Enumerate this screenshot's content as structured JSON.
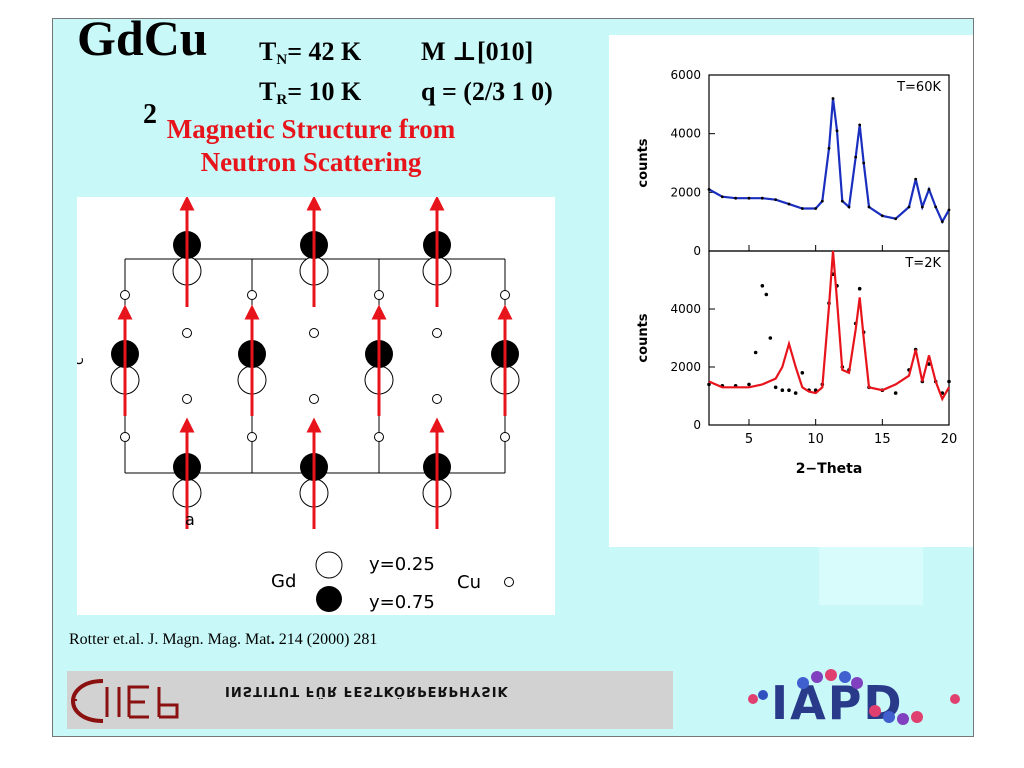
{
  "title": {
    "formula": "GdCu",
    "subscript": "2"
  },
  "params": {
    "tn_label": "T",
    "tn_sub": "N",
    "tn_value": "= 42 K",
    "moment": "M ⊥[010]",
    "tr_label": "T",
    "tr_sub": "R",
    "tr_value": "= 10 K",
    "q_vector": "q = (2/3 1 0)"
  },
  "heading": {
    "line1": "Magnetic Structure from",
    "line2": "Neutron Scattering"
  },
  "structure": {
    "axis_c": "c",
    "axis_a": "a",
    "legend_gd": "Gd",
    "legend_cu": "Cu",
    "legend_y_open": "y=0.25",
    "legend_y_filled": "y=0.75",
    "arrow_color": "#e8141c"
  },
  "citation": {
    "text": "Rotter et.al. J. Magn. Mag. Mat",
    "bold": ".",
    "rest": " 214 (2000) 281"
  },
  "footer": {
    "institute": "INSTITUT FÜR FESTKÖRPERPHYSIK",
    "logo_left": "IFP",
    "logo_right": "IAPD"
  },
  "colors": {
    "background": "#c8f8f8",
    "fit_60K": "#1a2fbf",
    "fit_2K": "#e8141c",
    "data": "#000000"
  },
  "chart_data": [
    {
      "type": "line",
      "annotation": "T=60K",
      "xlabel": "",
      "ylabel": "counts",
      "xlim": [
        2,
        20
      ],
      "ylim": [
        0,
        6000
      ],
      "yticks": [
        0,
        2000,
        4000,
        6000
      ],
      "series": [
        {
          "x": [
            2,
            3,
            4,
            5,
            6,
            7,
            8,
            9,
            10,
            10.5,
            11,
            11.3,
            11.6,
            12,
            12.5,
            13,
            13.3,
            13.6,
            14,
            15,
            16,
            17,
            17.5,
            18,
            18.5,
            19,
            19.5,
            20
          ],
          "values": [
            2100,
            1850,
            1800,
            1800,
            1800,
            1750,
            1600,
            1450,
            1450,
            1700,
            3500,
            5200,
            4100,
            1700,
            1500,
            3200,
            4300,
            3000,
            1500,
            1200,
            1100,
            1500,
            2450,
            1500,
            2100,
            1500,
            1000,
            1400
          ]
        }
      ]
    },
    {
      "type": "line",
      "annotation": "T=2K",
      "xlabel": "2−Theta",
      "ylabel": "counts",
      "xlim": [
        2,
        20
      ],
      "ylim": [
        0,
        6000
      ],
      "xticks": [
        5,
        10,
        15,
        20
      ],
      "yticks": [
        0,
        2000,
        4000
      ],
      "series": [
        {
          "x": [
            2,
            3,
            4,
            5,
            5.5,
            6,
            6.3,
            6.6,
            7,
            7.5,
            8,
            8.5,
            9,
            9.5,
            10,
            10.5,
            11,
            11.3,
            11.6,
            12,
            12.5,
            13,
            13.3,
            13.6,
            14,
            15,
            16,
            17,
            17.5,
            18,
            18.5,
            19,
            19.5,
            20
          ],
          "values": [
            1400,
            1350,
            1350,
            1400,
            2500,
            4800,
            4500,
            3000,
            1300,
            1200,
            1200,
            1100,
            1800,
            1200,
            1200,
            1400,
            4200,
            5200,
            4800,
            2000,
            1900,
            3500,
            4700,
            3200,
            1300,
            1200,
            1100,
            1900,
            2600,
            1500,
            2100,
            1500,
            1100,
            1500
          ]
        },
        {
          "x": [
            2,
            3,
            4,
            5,
            6,
            7,
            7.5,
            8,
            8.5,
            9,
            9.5,
            10,
            10.5,
            11,
            11.3,
            11.6,
            12,
            12.5,
            13,
            13.3,
            13.6,
            14,
            15,
            16,
            17,
            17.5,
            18,
            18.5,
            19,
            19.5,
            20
          ],
          "values": [
            1500,
            1300,
            1300,
            1300,
            1400,
            1600,
            2000,
            2800,
            2000,
            1300,
            1150,
            1100,
            1300,
            4100,
            6000,
            4300,
            1900,
            1800,
            3300,
            4400,
            3000,
            1300,
            1200,
            1400,
            1700,
            2600,
            1500,
            2400,
            1500,
            900,
            1300
          ]
        }
      ]
    }
  ]
}
